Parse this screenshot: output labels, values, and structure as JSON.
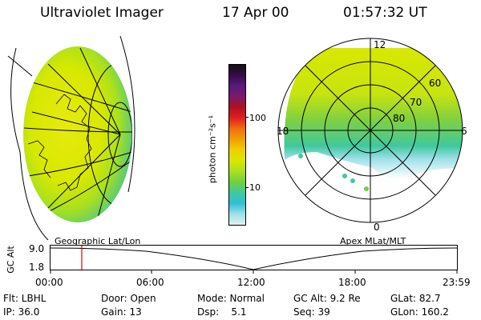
{
  "header": {
    "instrument": "Ultraviolet Imager",
    "date": "17 Apr 00",
    "time": "01:57:32 UT"
  },
  "colorbar": {
    "unit_label": "photon cm⁻²s⁻¹",
    "ticks": [
      "100",
      "10"
    ],
    "colors": [
      "#111111",
      "#3a0a4a",
      "#5a1a7a",
      "#7a1a6a",
      "#b01020",
      "#e02020",
      "#f07010",
      "#f0a000",
      "#f0d000",
      "#d8e800",
      "#a8e020",
      "#70d040",
      "#40c8a0",
      "#30c0d8",
      "#a0e0e8",
      "#e0f0f0"
    ]
  },
  "polar_map": {
    "mlt_labels": {
      "top": "12",
      "left": "18",
      "right": "6",
      "bottom": "0"
    },
    "lat_labels": [
      "60",
      "70",
      "80"
    ]
  },
  "timeline": {
    "y_axis_label": "GC Alt",
    "y_ticks": [
      "9.0",
      "1.8"
    ],
    "left_label": "Geographic Lat/Lon",
    "right_label": "Apex MLat/MLT",
    "x_ticks": [
      "00:00",
      "06:00",
      "12:00",
      "18:00",
      "23:59"
    ],
    "marker_color": "#e00000"
  },
  "footer": {
    "flt": "Flt: LBHL",
    "door": "Door: Open",
    "mode": "Mode: Normal",
    "gc_alt": "GC Alt: 9.2 Re",
    "glat": "GLat: 82.7",
    "ip": "IP: 36.0",
    "gain": "Gain: 13",
    "dsp": "Dsp:    5.1",
    "seq": "Seq: 39",
    "glon": "GLon: 160.2"
  }
}
